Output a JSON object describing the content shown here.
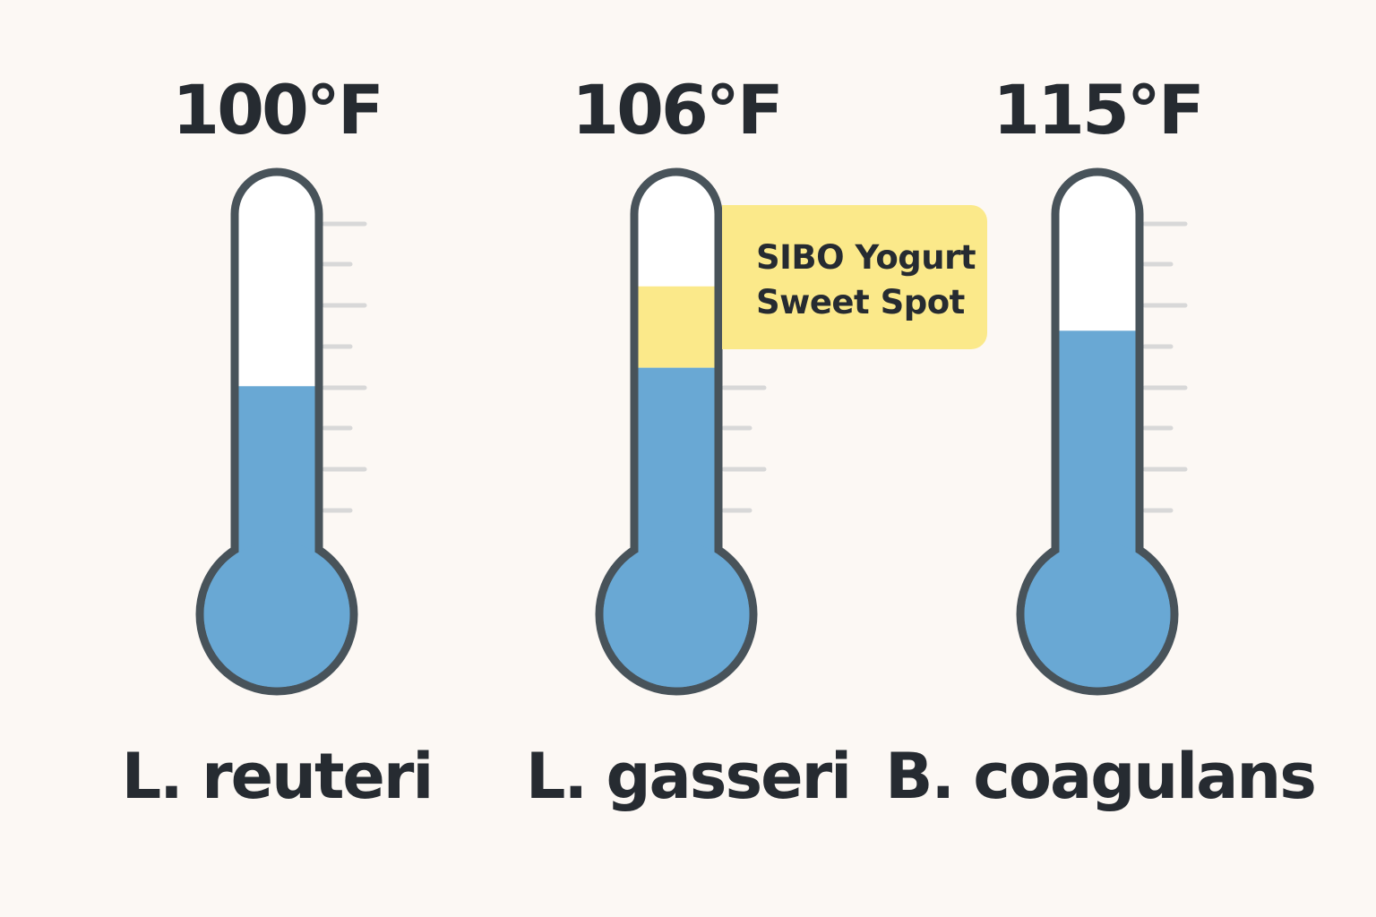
{
  "colors": {
    "background": "#fcf8f4",
    "outline": "#48535a",
    "mercury": "#69a8d4",
    "sweet_spot": "#fbe98a",
    "tick": "#d8d8d8",
    "text": "#262b31"
  },
  "callout": {
    "line1": "SIBO Yogurt",
    "line2": "Sweet Spot"
  },
  "thermometers": [
    {
      "temperature": "100°F",
      "name": "L. reuteri",
      "fill_fraction": 0.44
    },
    {
      "temperature": "106°F",
      "name": "L. gasseri",
      "fill_fraction": 0.49,
      "sweet_spot_to_fraction": 0.71
    },
    {
      "temperature": "115°F",
      "name": "B. coagulans",
      "fill_fraction": 0.59
    }
  ]
}
